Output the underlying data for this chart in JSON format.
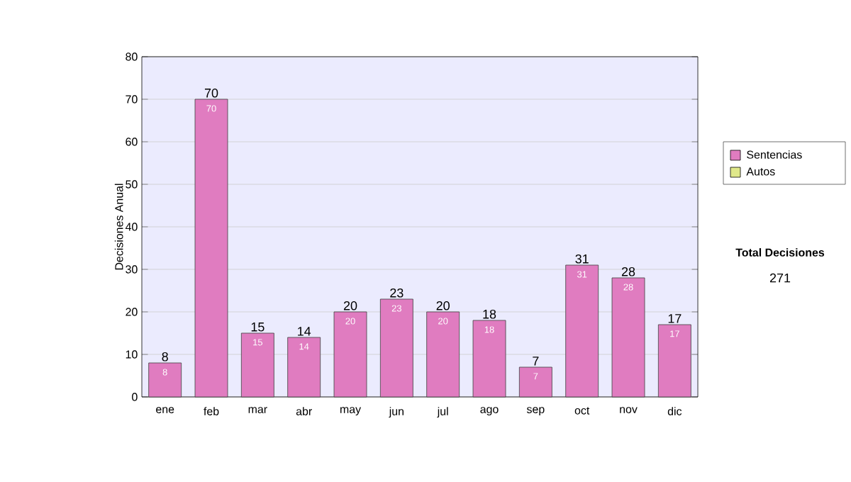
{
  "chart_data": {
    "type": "bar",
    "ylabel": "Decisiones Anual",
    "categories": [
      "ene",
      "feb",
      "mar",
      "abr",
      "may",
      "jun",
      "jul",
      "ago",
      "sep",
      "oct",
      "nov",
      "dic"
    ],
    "series": [
      {
        "name": "Sentencias",
        "color": "#e07cc0",
        "values": [
          8,
          70,
          15,
          14,
          20,
          23,
          20,
          18,
          7,
          31,
          28,
          17
        ]
      },
      {
        "name": "Autos",
        "color": "#dfe88a",
        "values": [
          null,
          null,
          null,
          null,
          null,
          null,
          null,
          null,
          null,
          null,
          null,
          null
        ]
      }
    ],
    "ylim": [
      0,
      80
    ],
    "yticks": [
      0,
      10,
      20,
      30,
      40,
      50,
      60,
      70,
      80
    ],
    "totals": [
      "8",
      "70",
      "15",
      "14",
      "20",
      "23",
      "20",
      "18",
      "7",
      "31",
      "28",
      "17"
    ],
    "grid": "y",
    "legend": "right",
    "data_labels": true,
    "annotations": [
      "Total Decisiones",
      "271"
    ]
  }
}
